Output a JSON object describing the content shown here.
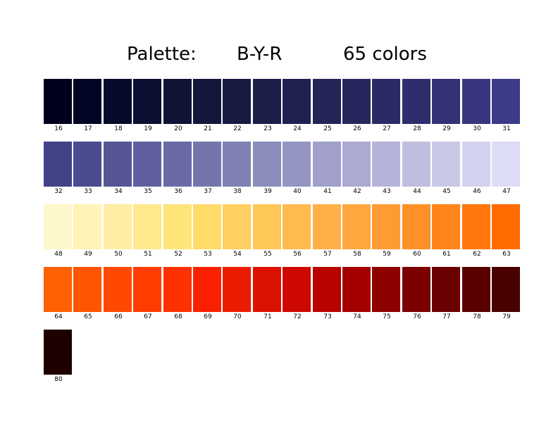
{
  "title": {
    "label": "Palette:",
    "palette_name": "B-Y-R",
    "count_text": "65 colors"
  },
  "chart_data": {
    "type": "table",
    "title": "Palette:      B-Y-R      65 colors",
    "columns_per_row": 16,
    "swatches": [
      {
        "index": "16",
        "color": "#00001e"
      },
      {
        "index": "17",
        "color": "#030525"
      },
      {
        "index": "18",
        "color": "#070a2b"
      },
      {
        "index": "19",
        "color": "#0b0f31"
      },
      {
        "index": "20",
        "color": "#0f1336"
      },
      {
        "index": "21",
        "color": "#13173b"
      },
      {
        "index": "22",
        "color": "#171b42"
      },
      {
        "index": "23",
        "color": "#1b1e48"
      },
      {
        "index": "24",
        "color": "#1f2250"
      },
      {
        "index": "25",
        "color": "#222556"
      },
      {
        "index": "26",
        "color": "#26285d"
      },
      {
        "index": "27",
        "color": "#2a2b65"
      },
      {
        "index": "28",
        "color": "#2e2e6d"
      },
      {
        "index": "29",
        "color": "#333275"
      },
      {
        "index": "30",
        "color": "#37367e"
      },
      {
        "index": "31",
        "color": "#3c3b88"
      },
      {
        "index": "32",
        "color": "#424289"
      },
      {
        "index": "33",
        "color": "#4b4b90"
      },
      {
        "index": "34",
        "color": "#565697"
      },
      {
        "index": "35",
        "color": "#60609f"
      },
      {
        "index": "36",
        "color": "#6a6aa6"
      },
      {
        "index": "37",
        "color": "#7575ad"
      },
      {
        "index": "38",
        "color": "#8080b4"
      },
      {
        "index": "39",
        "color": "#8b8bbc"
      },
      {
        "index": "40",
        "color": "#9595c3"
      },
      {
        "index": "41",
        "color": "#a0a0ca"
      },
      {
        "index": "42",
        "color": "#aaaad2"
      },
      {
        "index": "43",
        "color": "#b4b4d9"
      },
      {
        "index": "44",
        "color": "#bebee0"
      },
      {
        "index": "45",
        "color": "#c8c8e7"
      },
      {
        "index": "46",
        "color": "#d2d2ef"
      },
      {
        "index": "47",
        "color": "#dcdcf6"
      },
      {
        "index": "48",
        "color": "#fff7cc"
      },
      {
        "index": "49",
        "color": "#fff3b8"
      },
      {
        "index": "50",
        "color": "#ffeda4"
      },
      {
        "index": "51",
        "color": "#ffe98c"
      },
      {
        "index": "52",
        "color": "#ffe47a"
      },
      {
        "index": "53",
        "color": "#ffdb6a"
      },
      {
        "index": "54",
        "color": "#ffd060"
      },
      {
        "index": "55",
        "color": "#ffc658"
      },
      {
        "index": "56",
        "color": "#ffbb50"
      },
      {
        "index": "57",
        "color": "#ffb048"
      },
      {
        "index": "58",
        "color": "#ffa63f"
      },
      {
        "index": "59",
        "color": "#ff9b33"
      },
      {
        "index": "60",
        "color": "#ff9027"
      },
      {
        "index": "61",
        "color": "#ff841a"
      },
      {
        "index": "62",
        "color": "#ff770d"
      },
      {
        "index": "63",
        "color": "#ff6b00"
      },
      {
        "index": "64",
        "color": "#ff6000"
      },
      {
        "index": "65",
        "color": "#ff5400"
      },
      {
        "index": "66",
        "color": "#ff4800"
      },
      {
        "index": "67",
        "color": "#ff3d00"
      },
      {
        "index": "68",
        "color": "#ff3100"
      },
      {
        "index": "69",
        "color": "#fb2100"
      },
      {
        "index": "70",
        "color": "#ec1c00"
      },
      {
        "index": "71",
        "color": "#dc1200"
      },
      {
        "index": "72",
        "color": "#cc0800"
      },
      {
        "index": "73",
        "color": "#b80200"
      },
      {
        "index": "74",
        "color": "#a40000"
      },
      {
        "index": "75",
        "color": "#8f0000"
      },
      {
        "index": "76",
        "color": "#7c0000"
      },
      {
        "index": "77",
        "color": "#6a0000"
      },
      {
        "index": "78",
        "color": "#580000"
      },
      {
        "index": "79",
        "color": "#480000"
      },
      {
        "index": "80",
        "color": "#1e0000"
      }
    ]
  }
}
